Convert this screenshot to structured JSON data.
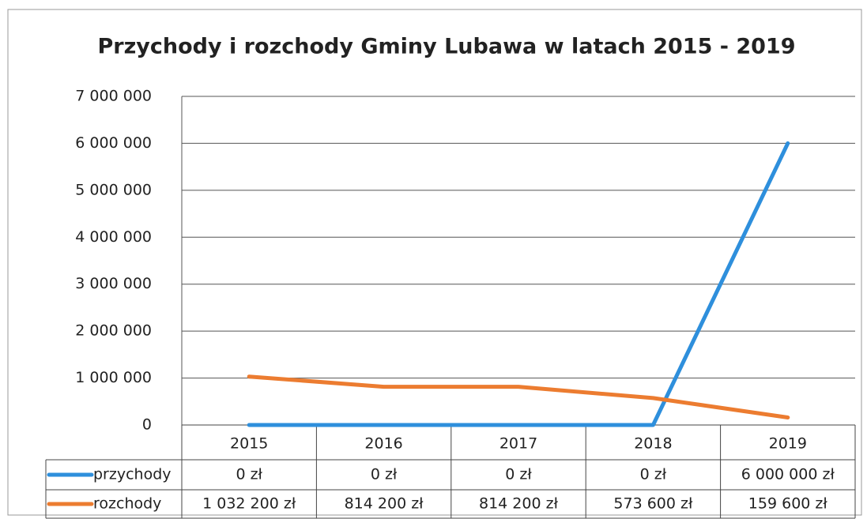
{
  "chart_data": {
    "type": "line",
    "title": "Przychody i rozchody Gminy Lubawa w latach 2015 - 2019",
    "categories": [
      "2015",
      "2016",
      "2017",
      "2018",
      "2019"
    ],
    "series": [
      {
        "name": "przychody",
        "color": "#2e8fdc",
        "values": [
          0,
          0,
          0,
          0,
          6000000
        ],
        "value_labels": [
          "0 zł",
          "0 zł",
          "0 zł",
          "0 zł",
          "6 000 000 zł"
        ]
      },
      {
        "name": "rozchody",
        "color": "#ec7c30",
        "values": [
          1032200,
          814200,
          814200,
          573600,
          159600
        ],
        "value_labels": [
          "1 032 200 zł",
          "814 200 zł",
          "814 200 zł",
          "573 600 zł",
          "159 600 zł"
        ]
      }
    ],
    "ylim": [
      0,
      7000000
    ],
    "yticks": [
      0,
      {
        "value": 1000000,
        "label": "1 000 000"
      },
      {
        "value": 2000000,
        "label": "2 000 000"
      },
      {
        "value": 3000000,
        "label": "3 000 000"
      },
      {
        "value": 4000000,
        "label": "4 000 000"
      },
      {
        "value": 5000000,
        "label": "5 000 000"
      },
      {
        "value": 6000000,
        "label": "6 000 000"
      },
      {
        "value": 7000000,
        "label": "7 000 000"
      }
    ],
    "grid": true
  }
}
